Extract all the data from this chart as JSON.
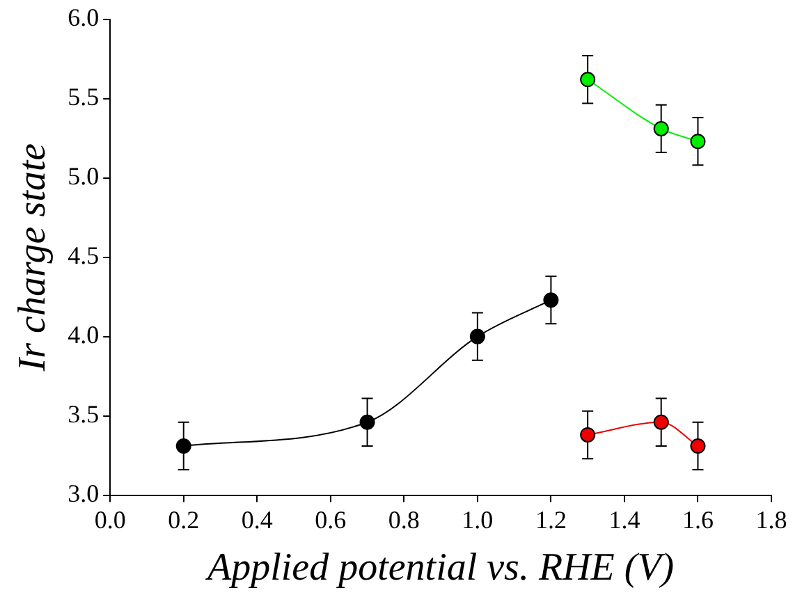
{
  "chart_data": {
    "type": "line",
    "xlabel": "Applied potential vs. RHE (V)",
    "ylabel": "Ir charge state",
    "xlim": [
      0,
      1.8
    ],
    "xticks": [
      {
        "value": 0,
        "label": "0.0"
      },
      0.2,
      0.4,
      0.6,
      0.8,
      {
        "value": 1,
        "label": "1.0"
      },
      1.2,
      1.4,
      1.6,
      1.8
    ],
    "ylim": [
      3,
      6
    ],
    "yticks": [
      {
        "value": 3,
        "label": "3.0"
      },
      3.5,
      {
        "value": 4,
        "label": "4.0"
      },
      4.5,
      {
        "value": 5,
        "label": "5.0"
      },
      5.5,
      {
        "value": 6,
        "label": "6.0"
      }
    ],
    "grid": false,
    "legend": false,
    "marker": "circle",
    "line_style": "solid",
    "series": [
      {
        "color": "#000000",
        "x": [
          0.2,
          0.7,
          1.0,
          1.2
        ],
        "values": [
          3.31,
          3.46,
          4.0,
          4.23
        ],
        "errors": [
          0.15,
          0.15,
          0.15,
          0.15
        ]
      },
      {
        "color": "#00ee00",
        "x": [
          1.3,
          1.5,
          1.6
        ],
        "values": [
          5.62,
          5.31,
          5.23
        ],
        "errors": [
          0.15,
          0.15,
          0.15
        ]
      },
      {
        "color": "#ee0000",
        "x": [
          1.3,
          1.5,
          1.6
        ],
        "values": [
          3.38,
          3.46,
          3.31
        ],
        "errors": [
          0.15,
          0.15,
          0.15
        ]
      }
    ]
  }
}
